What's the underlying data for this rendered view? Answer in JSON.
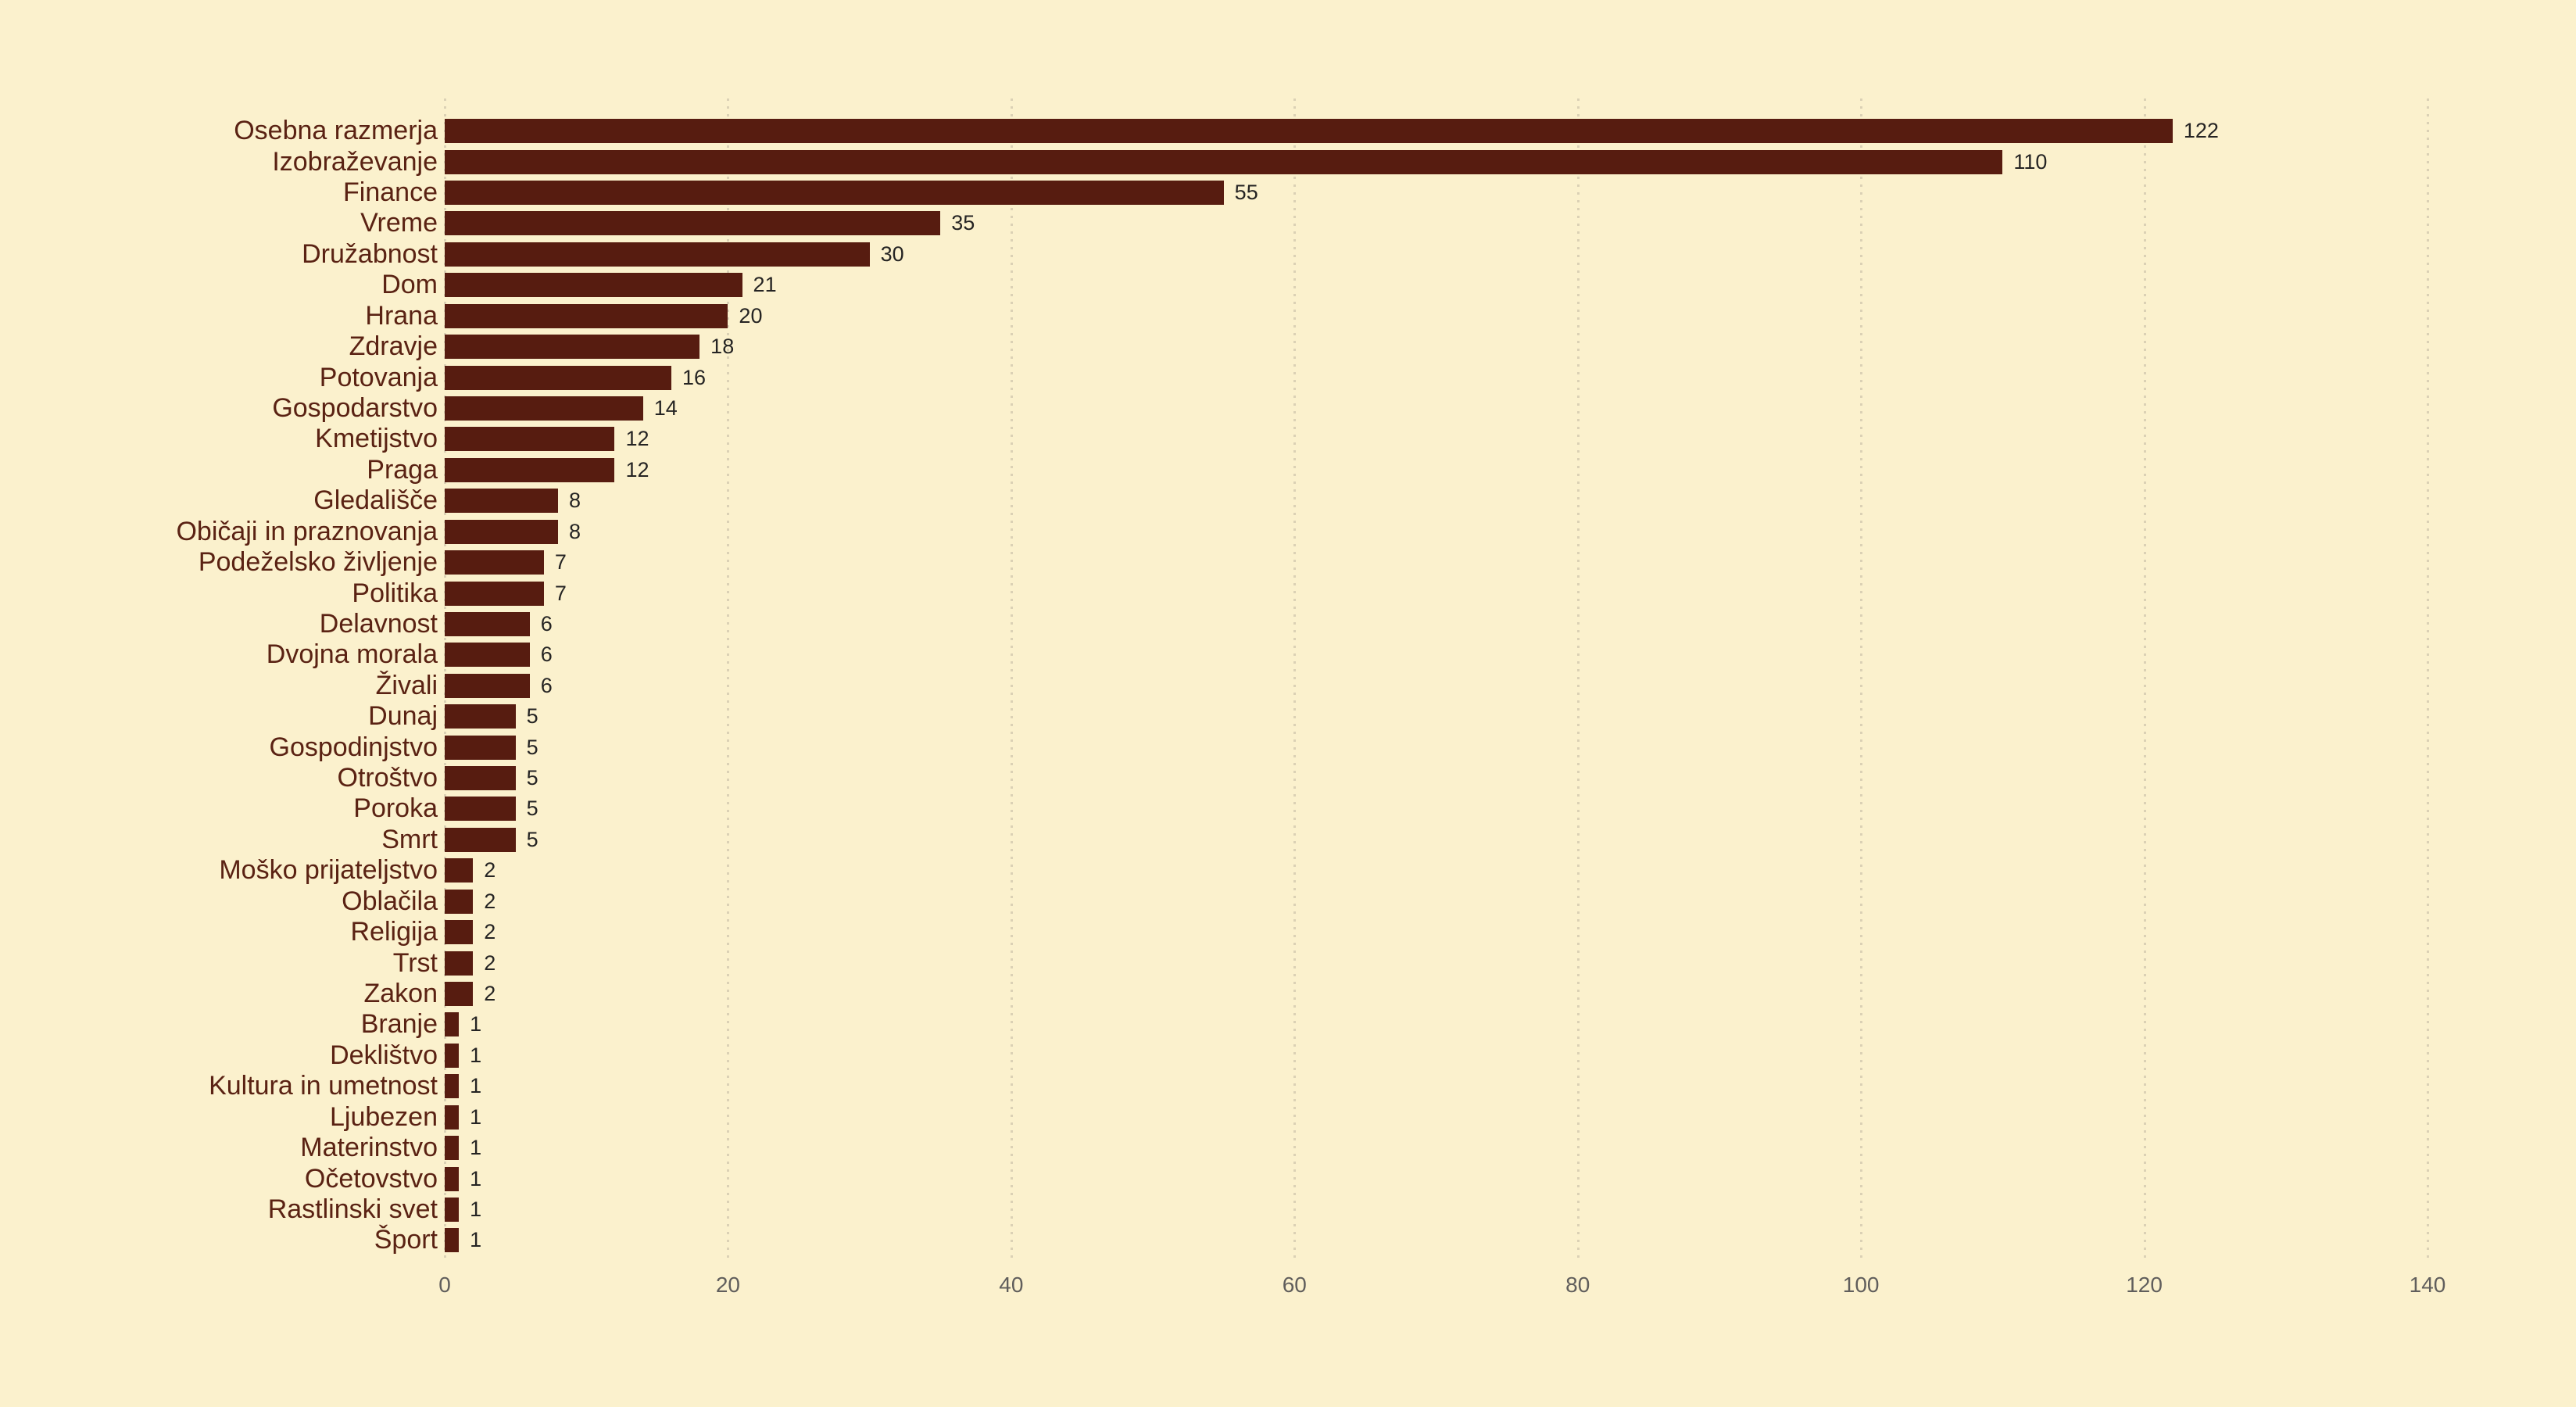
{
  "chart_data": {
    "type": "bar",
    "orientation": "horizontal",
    "title": "",
    "xlabel": "",
    "ylabel": "",
    "categories": [
      "Osebna razmerja",
      "Izobraževanje",
      "Finance",
      "Vreme",
      "Družabnost",
      "Dom",
      "Hrana",
      "Zdravje",
      "Potovanja",
      "Gospodarstvo",
      "Kmetijstvo",
      "Praga",
      "Gledališče",
      "Običaji in praznovanja",
      "Podeželsko življenje",
      "Politika",
      "Delavnost",
      "Dvojna morala",
      "Živali",
      "Dunaj",
      "Gospodinjstvo",
      "Otroštvo",
      "Poroka",
      "Smrt",
      "Moško prijateljstvo",
      "Oblačila",
      "Religija",
      "Trst",
      "Zakon",
      "Branje",
      "Deklištvo",
      "Kultura in umetnost",
      "Ljubezen",
      "Materinstvo",
      "Očetovstvo",
      "Rastlinski svet",
      "Šport"
    ],
    "values": [
      122,
      110,
      55,
      35,
      30,
      21,
      20,
      18,
      16,
      14,
      12,
      12,
      8,
      8,
      7,
      7,
      6,
      6,
      6,
      5,
      5,
      5,
      5,
      5,
      2,
      2,
      2,
      2,
      2,
      1,
      1,
      1,
      1,
      1,
      1,
      1,
      1
    ],
    "xlim": [
      0,
      140
    ],
    "x_ticks": [
      0,
      20,
      40,
      60,
      80,
      100,
      120,
      140
    ],
    "grid": "vertical-dotted",
    "legend": "none",
    "colors": {
      "background": "#FBF1CD",
      "bar": "#571C10",
      "category_label": "#5A2213",
      "value_label": "#252423",
      "tick_label": "#605E5C",
      "gridline": "#DBD1B5"
    }
  }
}
